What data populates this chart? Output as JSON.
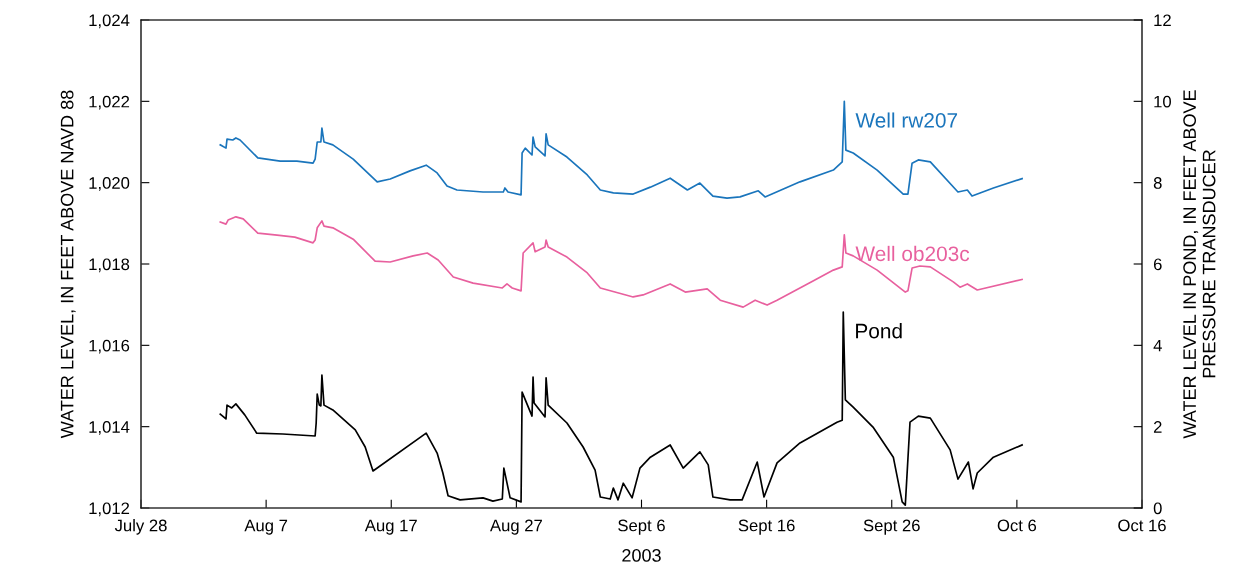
{
  "chart_data": {
    "type": "line",
    "xlabel": "2003",
    "ylabel": "WATER LEVEL, IN FEET ABOVE NAVD 88",
    "y2label": "WATER LEVEL IN POND, IN FEET ABOVE\nPRESSURE TRANSDUCER",
    "xlim": [
      "2003-07-28",
      "2003-10-16"
    ],
    "xticks": [
      {
        "value": "2003-07-28",
        "label": "July 28"
      },
      {
        "value": "2003-08-07",
        "label": "Aug 7"
      },
      {
        "value": "2003-08-17",
        "label": "Aug 17"
      },
      {
        "value": "2003-08-27",
        "label": "Aug 27"
      },
      {
        "value": "2003-09-06",
        "label": "Sept 6"
      },
      {
        "value": "2003-09-16",
        "label": "Sept 16"
      },
      {
        "value": "2003-09-26",
        "label": "Sept 26"
      },
      {
        "value": "2003-10-06",
        "label": "Oct 6"
      },
      {
        "value": "2003-10-16",
        "label": "Oct 16"
      }
    ],
    "ylim": [
      1012,
      1024
    ],
    "yticks": [
      {
        "value": 1012,
        "label": "1,012"
      },
      {
        "value": 1014,
        "label": "1,014"
      },
      {
        "value": 1016,
        "label": "1,016"
      },
      {
        "value": 1018,
        "label": "1,018"
      },
      {
        "value": 1020,
        "label": "1,020"
      },
      {
        "value": 1022,
        "label": "1,022"
      },
      {
        "value": 1024,
        "label": "1,024"
      }
    ],
    "y2lim": [
      0,
      12
    ],
    "y2ticks": [
      0,
      2,
      4,
      6,
      8,
      10,
      12
    ],
    "grid": false,
    "legend": false,
    "marker": "none",
    "line_style": "solid",
    "series": [
      {
        "name": "Well rw207",
        "color": "#1a75bc",
        "x": [
          "2003-08-03T08:00",
          "2003-08-03T19:00",
          "2003-08-03T21:00",
          "2003-08-04T08:00",
          "2003-08-04T14:00",
          "2003-08-04T22:00",
          "2003-08-06T08:00",
          "2003-08-08T03:00",
          "2003-08-09T11:00",
          "2003-08-10T18:00",
          "2003-08-10T22:00",
          "2003-08-11T02:00",
          "2003-08-11T09:00",
          "2003-08-11T11:00",
          "2003-08-11T15:00",
          "2003-08-12T08:00",
          "2003-08-13T23:00",
          "2003-08-15T21:00",
          "2003-08-16T22:00",
          "2003-08-18T12:00",
          "2003-08-19T19:00",
          "2003-08-20T16:00",
          "2003-08-21T11:00",
          "2003-08-22T06:00",
          "2003-08-24T08:00",
          "2003-08-25T23:00",
          "2003-08-26T02:00",
          "2003-08-26T08:00",
          "2003-08-27T09:00",
          "2003-08-27T11:00",
          "2003-08-27T17:00",
          "2003-08-28T06:00",
          "2003-08-28T08:00",
          "2003-08-28T12:00",
          "2003-08-29T07:00",
          "2003-08-29T09:00",
          "2003-08-29T13:00",
          "2003-08-31T01:00",
          "2003-09-01T16:00",
          "2003-09-02T17:00",
          "2003-09-03T18:00",
          "2003-09-05T08:00",
          "2003-09-06T17:00",
          "2003-09-08T07:00",
          "2003-09-09T16:00",
          "2003-09-10T16:00",
          "2003-09-11T17:00",
          "2003-09-12T20:00",
          "2003-09-13T21:00",
          "2003-09-15T08:00",
          "2003-09-15T21:00",
          "2003-09-18T16:00",
          "2003-09-21T08:00",
          "2003-09-22T01:00",
          "2003-09-22T05:00",
          "2003-09-22T08:00",
          "2003-09-22T22:00",
          "2003-09-24T20:00",
          "2003-09-26T22:00",
          "2003-09-27T07:00",
          "2003-09-27T15:00",
          "2003-09-28T03:00",
          "2003-09-29T02:00",
          "2003-10-01T07:00",
          "2003-10-02T01:00",
          "2003-10-02T10:00",
          "2003-10-04T03:00",
          "2003-10-06T10:00"
        ],
        "values": [
          1020.93,
          1020.85,
          1021.07,
          1021.05,
          1021.1,
          1021.05,
          1020.61,
          1020.53,
          1020.53,
          1020.48,
          1020.58,
          1021.0,
          1021.0,
          1021.34,
          1021.0,
          1020.93,
          1020.58,
          1020.02,
          1020.09,
          1020.29,
          1020.43,
          1020.24,
          1019.92,
          1019.82,
          1019.77,
          1019.77,
          1019.87,
          1019.77,
          1019.7,
          1020.73,
          1020.85,
          1020.68,
          1021.12,
          1020.88,
          1020.66,
          1021.2,
          1020.93,
          1020.63,
          1020.19,
          1019.82,
          1019.75,
          1019.72,
          1019.89,
          1020.11,
          1019.82,
          1019.99,
          1019.67,
          1019.62,
          1019.65,
          1019.8,
          1019.65,
          1020.02,
          1020.31,
          1020.51,
          1022.0,
          1020.8,
          1020.73,
          1020.31,
          1019.72,
          1019.72,
          1020.48,
          1020.56,
          1020.51,
          1019.77,
          1019.82,
          1019.67,
          1019.87,
          1020.1
        ]
      },
      {
        "name": "Well ob203c",
        "color": "#e8609e",
        "x": [
          "2003-08-03T08:00",
          "2003-08-03T19:00",
          "2003-08-03T23:00",
          "2003-08-04T14:00",
          "2003-08-05T04:00",
          "2003-08-06T08:00",
          "2003-08-07T21:00",
          "2003-08-09T07:00",
          "2003-08-10T18:00",
          "2003-08-10T22:00",
          "2003-08-11T02:00",
          "2003-08-11T11:00",
          "2003-08-11T15:00",
          "2003-08-12T08:00",
          "2003-08-13T23:00",
          "2003-08-15T17:00",
          "2003-08-16T22:00",
          "2003-08-18T18:00",
          "2003-08-19T21:00",
          "2003-08-20T18:00",
          "2003-08-21T23:00",
          "2003-08-23T13:00",
          "2003-08-25T21:00",
          "2003-08-26T06:00",
          "2003-08-26T16:00",
          "2003-08-27T09:00",
          "2003-08-27T13:00",
          "2003-08-28T08:00",
          "2003-08-28T12:00",
          "2003-08-29T07:00",
          "2003-08-29T09:00",
          "2003-08-29T13:00",
          "2003-08-31T01:00",
          "2003-09-01T16:00",
          "2003-09-02T17:00",
          "2003-09-05T08:00",
          "2003-09-06T03:00",
          "2003-09-08T07:00",
          "2003-09-09T12:00",
          "2003-09-11T06:00",
          "2003-09-12T07:00",
          "2003-09-14T03:00",
          "2003-09-15T02:00",
          "2003-09-16T01:00",
          "2003-09-16T20:00",
          "2003-09-19T17:00",
          "2003-09-21T08:00",
          "2003-09-22T01:00",
          "2003-09-22T05:00",
          "2003-09-22T08:00",
          "2003-09-22T22:00",
          "2003-09-24T20:00",
          "2003-09-27T02:00",
          "2003-09-27T07:00",
          "2003-09-27T15:00",
          "2003-09-28T06:00",
          "2003-09-29T02:00",
          "2003-09-30T22:00",
          "2003-10-01T11:00",
          "2003-10-02T01:00",
          "2003-10-02T20:00",
          "2003-10-06T10:00"
        ],
        "values": [
          1019.03,
          1018.98,
          1019.08,
          1019.16,
          1019.11,
          1018.76,
          1018.71,
          1018.66,
          1018.52,
          1018.59,
          1018.89,
          1019.06,
          1018.93,
          1018.89,
          1018.61,
          1018.07,
          1018.05,
          1018.2,
          1018.27,
          1018.1,
          1017.68,
          1017.53,
          1017.41,
          1017.51,
          1017.41,
          1017.34,
          1018.27,
          1018.52,
          1018.3,
          1018.42,
          1018.59,
          1018.42,
          1018.17,
          1017.78,
          1017.41,
          1017.19,
          1017.24,
          1017.51,
          1017.31,
          1017.39,
          1017.11,
          1016.94,
          1017.11,
          1016.99,
          1017.11,
          1017.58,
          1017.85,
          1017.93,
          1018.72,
          1018.27,
          1018.2,
          1017.85,
          1017.31,
          1017.34,
          1017.9,
          1017.95,
          1017.93,
          1017.56,
          1017.43,
          1017.51,
          1017.36,
          1017.62
        ]
      },
      {
        "name": "Pond",
        "color": "#000000",
        "axis": "y2",
        "x": [
          "2003-08-03T08:00",
          "2003-08-03T19:00",
          "2003-08-03T21:00",
          "2003-08-04T06:00",
          "2003-08-04T14:00",
          "2003-08-05T07:00",
          "2003-08-06T06:00",
          "2003-08-08T08:00",
          "2003-08-10T22:00",
          "2003-08-11T00:00",
          "2003-08-11T02:00",
          "2003-08-11T06:00",
          "2003-08-11T09:00",
          "2003-08-11T11:00",
          "2003-08-11T15:00",
          "2003-08-12T08:00",
          "2003-08-14T03:00",
          "2003-08-14T22:00",
          "2003-08-15T13:00",
          "2003-08-19T19:00",
          "2003-08-20T16:00",
          "2003-08-21T03:00",
          "2003-08-21T13:00",
          "2003-08-22T12:00",
          "2003-08-24T08:00",
          "2003-08-25T03:00",
          "2003-08-25T21:00",
          "2003-08-26T00:00",
          "2003-08-26T12:00",
          "2003-08-27T09:00",
          "2003-08-27T11:00",
          "2003-08-28T06:00",
          "2003-08-28T08:00",
          "2003-08-28T10:00",
          "2003-08-29T07:00",
          "2003-08-29T09:00",
          "2003-08-29T13:00",
          "2003-08-31T01:00",
          "2003-09-01T08:00",
          "2003-09-02T07:00",
          "2003-09-02T17:00",
          "2003-09-03T12:00",
          "2003-09-03T18:00",
          "2003-09-04T03:00",
          "2003-09-04T13:00",
          "2003-09-05T06:00",
          "2003-09-05T21:00",
          "2003-09-06T17:00",
          "2003-09-08T07:00",
          "2003-09-09T08:00",
          "2003-09-10T16:00",
          "2003-09-11T08:00",
          "2003-09-11T17:00",
          "2003-09-13T02:00",
          "2003-09-14T01:00",
          "2003-09-15T06:00",
          "2003-09-15T19:00",
          "2003-09-16T20:00",
          "2003-09-18T16:00",
          "2003-09-21T15:00",
          "2003-09-22T01:00",
          "2003-09-22T03:00",
          "2003-09-22T07:00",
          "2003-09-22T22:00",
          "2003-09-24T12:00",
          "2003-09-26T03:00",
          "2003-09-26T20:00",
          "2003-09-27T02:00",
          "2003-09-27T11:00",
          "2003-09-28T03:00",
          "2003-09-29T02:00",
          "2003-09-30T16:00",
          "2003-10-01T07:00",
          "2003-10-02T03:00",
          "2003-10-02T12:00",
          "2003-10-02T20:00",
          "2003-10-04T03:00",
          "2003-10-06T10:00"
        ],
        "values": [
          2.31,
          2.19,
          2.53,
          2.46,
          2.56,
          2.29,
          1.84,
          1.82,
          1.77,
          2.09,
          2.8,
          2.53,
          2.51,
          3.27,
          2.53,
          2.41,
          1.92,
          1.5,
          0.91,
          1.84,
          1.35,
          0.86,
          0.3,
          0.2,
          0.25,
          0.17,
          0.22,
          0.98,
          0.25,
          0.15,
          2.85,
          2.26,
          3.22,
          2.58,
          2.24,
          3.2,
          2.53,
          2.09,
          1.5,
          0.93,
          0.27,
          0.22,
          0.49,
          0.2,
          0.61,
          0.25,
          0.98,
          1.25,
          1.55,
          0.98,
          1.38,
          1.06,
          0.27,
          0.2,
          0.2,
          1.13,
          0.27,
          1.11,
          1.6,
          2.11,
          2.16,
          4.82,
          2.66,
          2.48,
          1.99,
          1.25,
          0.15,
          0.07,
          2.11,
          2.26,
          2.21,
          1.43,
          0.71,
          1.13,
          0.47,
          0.86,
          1.25,
          1.55
        ]
      }
    ]
  }
}
